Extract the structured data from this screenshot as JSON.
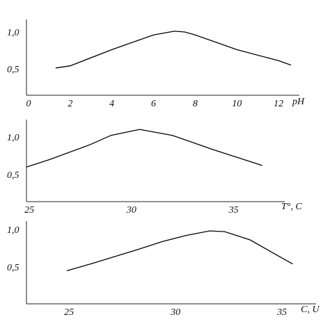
{
  "chart_data": [
    {
      "type": "line",
      "x_label": "pH",
      "x": [
        1.3,
        2,
        4,
        6,
        7,
        7.5,
        8,
        10,
        12,
        12.6
      ],
      "values": [
        0.5,
        0.53,
        0.75,
        0.95,
        1.0,
        0.99,
        0.95,
        0.75,
        0.6,
        0.54
      ],
      "color": "#000000",
      "xlim": [
        -0.1,
        13
      ],
      "xticks": [
        0,
        2,
        4,
        6,
        8,
        10,
        12
      ],
      "ylim": [
        0.13,
        1.16
      ],
      "yticks": [
        {
          "value": 0.5,
          "label": "0,5"
        },
        {
          "value": 1.0,
          "label": "1,0"
        }
      ]
    },
    {
      "type": "line",
      "x_label": "T°, C",
      "x": [
        24.86,
        26,
        28,
        29,
        30.4,
        32,
        34,
        36.4
      ],
      "values": [
        0.59,
        0.69,
        0.89,
        1.01,
        1.09,
        1.01,
        0.82,
        0.61
      ],
      "color": "#000000",
      "xlim": [
        24.86,
        37.5
      ],
      "xticks": [
        25,
        30,
        35
      ],
      "ylim": [
        0.13,
        1.22
      ],
      "yticks": [
        {
          "value": 0.5,
          "label": "0,5"
        },
        {
          "value": 1.0,
          "label": "1,0"
        }
      ]
    },
    {
      "type": "line",
      "x_label": "C, U",
      "x": [
        24.9,
        26,
        28.2,
        29.4,
        30.5,
        31.6,
        32.3,
        33.5,
        34.5,
        35.5
      ],
      "values": [
        0.44,
        0.53,
        0.72,
        0.83,
        0.91,
        0.97,
        0.96,
        0.85,
        0.69,
        0.53
      ],
      "color": "#000000",
      "xlim": [
        23,
        36.6
      ],
      "xticks": [
        25,
        30,
        35
      ],
      "ylim": [
        0.0,
        1.1
      ],
      "yticks": [
        {
          "value": 0.5,
          "label": "0,5"
        },
        {
          "value": 1.0,
          "label": "1,0"
        }
      ]
    }
  ]
}
